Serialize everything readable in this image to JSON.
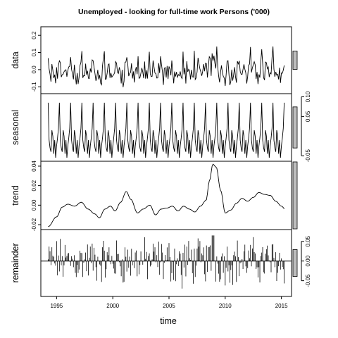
{
  "chart_data": {
    "type": "line",
    "title": "Unemployed - looking for full-time work Persons ('000)",
    "xlabel": "time",
    "xlim": [
      1993.6,
      2015.9
    ],
    "x_ticks": [
      1995,
      2000,
      2005,
      2010,
      2015
    ],
    "start": 1994.25,
    "frequency": 12,
    "seasonal_pattern": [
      0.085,
      -0.01,
      -0.03,
      -0.04,
      0.015,
      0.0,
      -0.045,
      -0.01,
      -0.055,
      -0.025,
      -0.005,
      0.02
    ],
    "trend_knots": [
      [
        1994.25,
        -0.022
      ],
      [
        1995.0,
        -0.012
      ],
      [
        1995.5,
        -0.002
      ],
      [
        1996.0,
        0.001
      ],
      [
        1996.6,
        -0.001
      ],
      [
        1997.2,
        0.003
      ],
      [
        1997.8,
        -0.004
      ],
      [
        1998.4,
        -0.009
      ],
      [
        1998.8,
        -0.013
      ],
      [
        1999.3,
        -0.004
      ],
      [
        1999.8,
        -0.001
      ],
      [
        2000.2,
        -0.006
      ],
      [
        2000.7,
        0.003
      ],
      [
        2001.2,
        0.014
      ],
      [
        2001.6,
        0.006
      ],
      [
        2002.2,
        -0.008
      ],
      [
        2002.7,
        -0.004
      ],
      [
        2003.3,
        0.0
      ],
      [
        2003.8,
        -0.01
      ],
      [
        2004.3,
        -0.004
      ],
      [
        2004.8,
        -0.003
      ],
      [
        2005.3,
        -0.001
      ],
      [
        2005.8,
        -0.006
      ],
      [
        2006.3,
        -0.001
      ],
      [
        2006.8,
        -0.004
      ],
      [
        2007.3,
        -0.007
      ],
      [
        2007.8,
        -0.001
      ],
      [
        2008.3,
        0.005
      ],
      [
        2008.6,
        0.025
      ],
      [
        2008.9,
        0.042
      ],
      [
        2009.2,
        0.039
      ],
      [
        2009.6,
        0.015
      ],
      [
        2010.0,
        -0.008
      ],
      [
        2010.5,
        -0.005
      ],
      [
        2011.0,
        0.002
      ],
      [
        2011.5,
        0.007
      ],
      [
        2012.0,
        0.004
      ],
      [
        2012.5,
        0.008
      ],
      [
        2013.0,
        0.013
      ],
      [
        2013.5,
        0.011
      ],
      [
        2014.0,
        0.01
      ],
      [
        2014.5,
        0.004
      ],
      [
        2015.0,
        -0.001
      ],
      [
        2015.4,
        -0.005
      ]
    ],
    "panels": [
      {
        "name": "data",
        "ylim": [
          -0.14,
          0.25
        ],
        "ticks": [
          -0.1,
          0.0,
          0.1,
          0.2
        ],
        "tick_labels": [
          "-0.1",
          "0.0",
          "0.1",
          "0.2"
        ],
        "axis_side": "left",
        "bar_ratio": 0.28
      },
      {
        "name": "seasonal",
        "ylim": [
          -0.064,
          0.108
        ],
        "ticks": [
          -0.05,
          0.05,
          0.1
        ],
        "tick_labels": [
          "-0.05",
          "0.05",
          "0.10"
        ],
        "axis_side": "right",
        "bar_ratio": 0.62
      },
      {
        "name": "trend",
        "ylim": [
          -0.025,
          0.045
        ],
        "ticks": [
          -0.02,
          0.0,
          0.02,
          0.04
        ],
        "tick_labels": [
          "-0.02",
          "0.00",
          "0.02",
          "0.04"
        ],
        "axis_side": "left",
        "bar_ratio": 1.0
      },
      {
        "name": "remainder",
        "ylim": [
          -0.09,
          0.08
        ],
        "ticks": [
          -0.05,
          0.0,
          0.05
        ],
        "tick_labels": [
          "-0.05",
          "0.00",
          "0.05"
        ],
        "axis_side": "right",
        "bar_ratio": 0.41
      }
    ],
    "grid": false,
    "legend": "none"
  }
}
